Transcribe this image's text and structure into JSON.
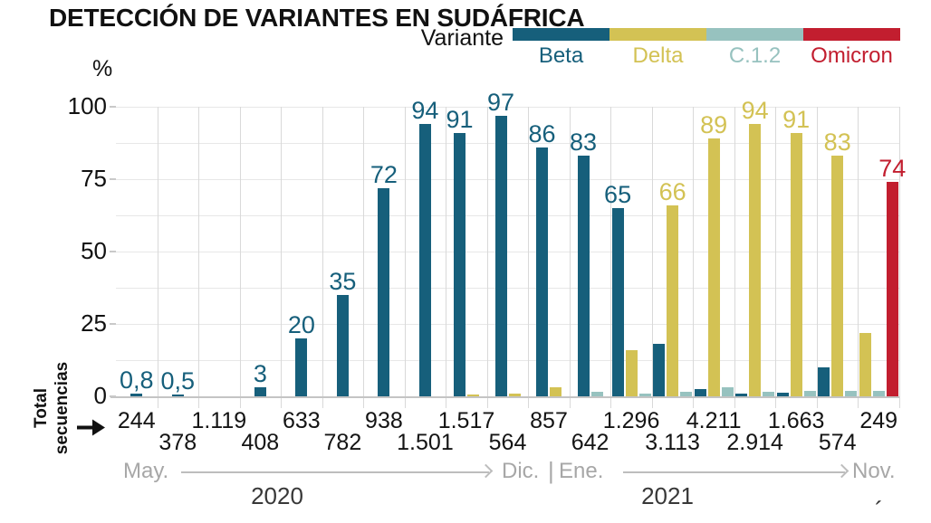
{
  "title": "DETECCIÓN DE VARIANTES EN SUDÁFRICA",
  "legend": {
    "title": "Variante",
    "items": [
      {
        "name": "Beta",
        "color": "#165f7b"
      },
      {
        "name": "Delta",
        "color": "#d3c254"
      },
      {
        "name": "C.1.2",
        "color": "#97c2bf"
      },
      {
        "name": "Omicron",
        "color": "#c21e2f"
      }
    ]
  },
  "y_axis": {
    "unit": "%",
    "ticks": [
      0,
      25,
      50,
      75,
      100
    ]
  },
  "total_label": {
    "line1": "Total",
    "line2": "secuencias"
  },
  "timeline": {
    "start": "May.",
    "mid_left": "Dic.",
    "separator": "|",
    "mid_right": "Ene.",
    "end": "Nov.",
    "year_left": "2020",
    "year_right": "2021"
  },
  "stray_mark": "´",
  "chart_data": {
    "type": "bar",
    "title": "DETECCIÓN DE VARIANTES EN SUDÁFRICA",
    "ylabel": "%",
    "ylim": [
      0,
      100
    ],
    "yticks": [
      0,
      25,
      50,
      75,
      100
    ],
    "grid": "horizontal every 12.5, vertical per month",
    "legend_title": "Variante",
    "legend_position": "top-right",
    "series": [
      "Beta",
      "Delta",
      "C.1.2",
      "Omicron"
    ],
    "colors": {
      "Beta": "#165f7b",
      "Delta": "#d3c254",
      "C.1.2": "#97c2bf",
      "Omicron": "#c21e2f"
    },
    "x_axis": {
      "start": "May. 2020",
      "end": "Nov. 2021",
      "note": "19 monthly columns, totals shown under axis"
    },
    "months": [
      {
        "total": "244",
        "bars": [
          {
            "variant": "Beta",
            "value": 0.8,
            "label": "0,8"
          }
        ]
      },
      {
        "total": "378",
        "bars": [
          {
            "variant": "Beta",
            "value": 0.5,
            "label": "0,5"
          }
        ]
      },
      {
        "total": "1.119",
        "bars": []
      },
      {
        "total": "408",
        "bars": [
          {
            "variant": "Beta",
            "value": 3,
            "label": "3"
          }
        ]
      },
      {
        "total": "633",
        "bars": [
          {
            "variant": "Beta",
            "value": 20,
            "label": "20"
          }
        ]
      },
      {
        "total": "782",
        "bars": [
          {
            "variant": "Beta",
            "value": 35,
            "label": "35"
          }
        ]
      },
      {
        "total": "938",
        "bars": [
          {
            "variant": "Beta",
            "value": 72,
            "label": "72"
          }
        ]
      },
      {
        "total": "1.501",
        "bars": [
          {
            "variant": "Beta",
            "value": 94,
            "label": "94"
          }
        ]
      },
      {
        "total": "1.517",
        "bars": [
          {
            "variant": "Beta",
            "value": 91,
            "label": "91"
          },
          {
            "variant": "Delta",
            "value": 0.6,
            "label": null
          }
        ]
      },
      {
        "total": "564",
        "bars": [
          {
            "variant": "Beta",
            "value": 97,
            "label": "97"
          },
          {
            "variant": "Delta",
            "value": 0.8,
            "label": null
          }
        ]
      },
      {
        "total": "857",
        "bars": [
          {
            "variant": "Beta",
            "value": 86,
            "label": "86"
          },
          {
            "variant": "Delta",
            "value": 3,
            "label": null
          }
        ]
      },
      {
        "total": "642",
        "bars": [
          {
            "variant": "Beta",
            "value": 83,
            "label": "83"
          },
          {
            "variant": "C.1.2",
            "value": 1.5,
            "label": null
          }
        ]
      },
      {
        "total": "1.296",
        "bars": [
          {
            "variant": "Beta",
            "value": 65,
            "label": "65"
          },
          {
            "variant": "Delta",
            "value": 16,
            "label": null
          },
          {
            "variant": "C.1.2",
            "value": 1,
            "label": null
          }
        ]
      },
      {
        "total": "3.113",
        "bars": [
          {
            "variant": "Beta",
            "value": 18,
            "label": null
          },
          {
            "variant": "Delta",
            "value": 66,
            "label": "66"
          },
          {
            "variant": "C.1.2",
            "value": 1.5,
            "label": null
          }
        ]
      },
      {
        "total": "4.211",
        "bars": [
          {
            "variant": "Beta",
            "value": 2.5,
            "label": null
          },
          {
            "variant": "Delta",
            "value": 89,
            "label": "89"
          },
          {
            "variant": "C.1.2",
            "value": 3,
            "label": null
          }
        ]
      },
      {
        "total": "2.914",
        "bars": [
          {
            "variant": "Beta",
            "value": 1,
            "label": null
          },
          {
            "variant": "Delta",
            "value": 94,
            "label": "94"
          },
          {
            "variant": "C.1.2",
            "value": 1.5,
            "label": null
          }
        ]
      },
      {
        "total": "1.663",
        "bars": [
          {
            "variant": "Beta",
            "value": 1.2,
            "label": null
          },
          {
            "variant": "Delta",
            "value": 91,
            "label": "91"
          },
          {
            "variant": "C.1.2",
            "value": 2,
            "label": null
          }
        ]
      },
      {
        "total": "574",
        "bars": [
          {
            "variant": "Beta",
            "value": 10,
            "label": null
          },
          {
            "variant": "Delta",
            "value": 83,
            "label": "83"
          },
          {
            "variant": "C.1.2",
            "value": 2,
            "label": null
          }
        ]
      },
      {
        "total": "249",
        "bars": [
          {
            "variant": "Delta",
            "value": 22,
            "label": null
          },
          {
            "variant": "C.1.2",
            "value": 2,
            "label": null
          },
          {
            "variant": "Omicron",
            "value": 74,
            "label": "74"
          }
        ]
      }
    ]
  }
}
